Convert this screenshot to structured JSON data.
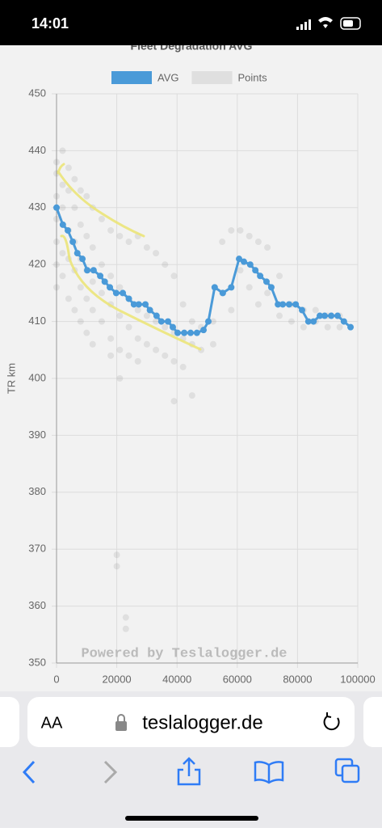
{
  "status_bar": {
    "time": "14:01"
  },
  "chart_data": {
    "type": "line",
    "title": "Fleet Degradation AVG",
    "y_label": "TR km",
    "watermark": "Powered by Teslalogger.de",
    "xlim": [
      0,
      100000
    ],
    "xticks": [
      0,
      20000,
      40000,
      60000,
      80000,
      100000
    ],
    "ylim": [
      350,
      450
    ],
    "yticks": [
      350,
      360,
      370,
      380,
      390,
      400,
      410,
      420,
      430,
      440,
      450
    ],
    "grid": true,
    "legend": "top",
    "series": [
      {
        "name": "AVG",
        "type": "line",
        "color": "#4a9ad8",
        "x": [
          0,
          2100,
          3750,
          5400,
          6900,
          8600,
          10200,
          12300,
          14500,
          16000,
          17700,
          19800,
          22000,
          24000,
          25700,
          27300,
          29500,
          31000,
          33200,
          34800,
          37000,
          38600,
          40200,
          42400,
          44500,
          46600,
          48800,
          50400,
          52500,
          55200,
          58000,
          60600,
          62200,
          64300,
          66000,
          67600,
          69700,
          71300,
          73500,
          75100,
          77200,
          79400,
          81500,
          83600,
          85300,
          87400,
          89000,
          91200,
          93300,
          95400,
          97600
        ],
        "values": [
          430,
          427,
          426,
          424,
          422,
          421,
          419,
          419,
          418,
          417,
          416,
          415,
          415,
          414,
          413,
          413,
          413,
          412,
          411,
          410,
          410,
          409,
          408,
          408,
          408,
          408,
          408.5,
          410,
          416,
          415,
          416,
          421,
          420.5,
          420,
          419,
          418,
          417,
          416,
          413,
          413,
          413,
          413,
          412,
          410,
          410,
          411,
          411,
          411,
          411,
          410,
          409
        ]
      },
      {
        "name": "Points",
        "type": "scatter",
        "color": "#666666",
        "x": [
          0,
          0,
          0,
          0,
          0,
          0,
          0,
          2000,
          2000,
          2000,
          2000,
          2000,
          4000,
          4000,
          4000,
          4000,
          4000,
          6000,
          6000,
          6000,
          6000,
          6000,
          8000,
          8000,
          8000,
          8000,
          8000,
          10000,
          10000,
          10000,
          10000,
          10000,
          12000,
          12000,
          12000,
          12000,
          12000,
          15000,
          15000,
          15000,
          15000,
          18000,
          18000,
          18000,
          18000,
          18000,
          21000,
          21000,
          21000,
          21000,
          21000,
          24000,
          24000,
          24000,
          24000,
          27000,
          27000,
          27000,
          27000,
          30000,
          30000,
          30000,
          33000,
          33000,
          33000,
          36000,
          36000,
          36000,
          39000,
          39000,
          39000,
          39000,
          42000,
          42000,
          42000,
          45000,
          45000,
          45000,
          48000,
          48000,
          52000,
          52000,
          55000,
          55000,
          58000,
          58000,
          61000,
          61000,
          64000,
          64000,
          67000,
          67000,
          70000,
          70000,
          74000,
          74000,
          78000,
          78000,
          82000,
          82000,
          86000,
          86000,
          90000,
          90000,
          94000,
          94000,
          20000,
          20000,
          23000,
          23000
        ],
        "values": [
          438,
          436,
          432,
          428,
          424,
          420,
          416,
          440,
          434,
          430,
          422,
          418,
          437,
          433,
          426,
          421,
          414,
          435,
          430,
          424,
          419,
          412,
          433,
          427,
          421,
          416,
          410,
          432,
          425,
          419,
          414,
          408,
          430,
          423,
          417,
          412,
          406,
          428,
          420,
          415,
          410,
          426,
          418,
          413,
          407,
          404,
          425,
          416,
          411,
          405,
          400,
          424,
          414,
          409,
          404,
          425,
          412,
          407,
          403,
          423,
          411,
          406,
          422,
          410,
          405,
          420,
          409,
          404,
          418,
          408,
          403,
          396,
          413,
          407,
          402,
          410,
          406,
          397,
          409,
          405,
          410,
          406,
          424,
          415,
          426,
          412,
          426,
          419,
          425,
          416,
          424,
          413,
          423,
          415,
          418,
          411,
          413,
          410,
          412,
          409,
          412,
          410,
          411,
          409,
          411,
          409,
          369,
          367,
          358,
          356
        ]
      }
    ]
  },
  "browser": {
    "text_size_label": "AA",
    "url": "teslalogger.de"
  }
}
